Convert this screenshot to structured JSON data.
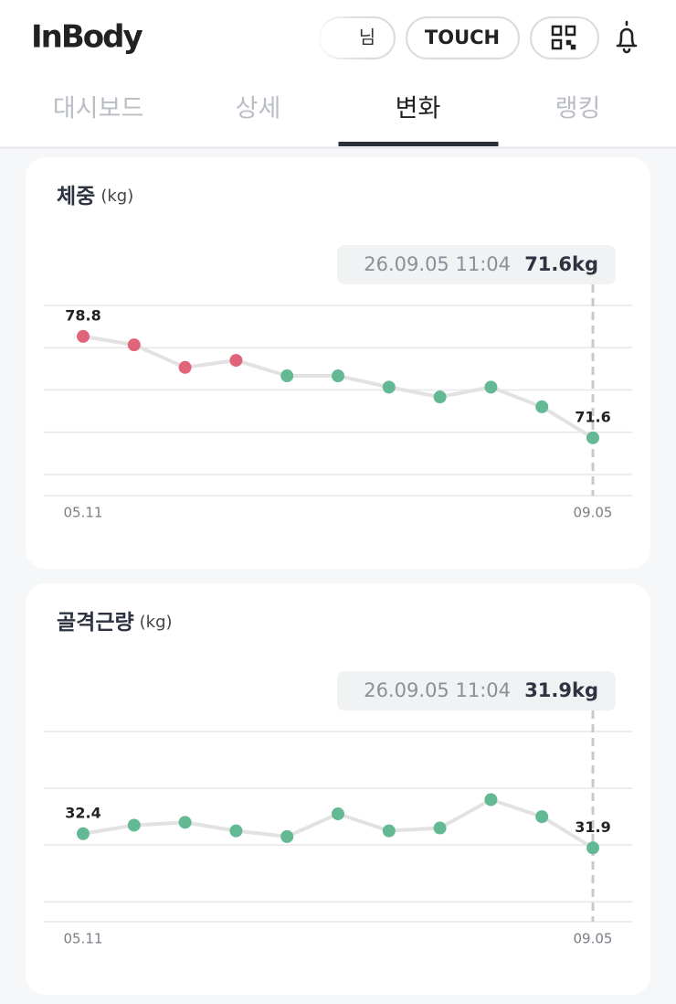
{
  "header": {
    "logo": "InBody",
    "user_button": "님",
    "touch_button": "TOUCH"
  },
  "tabs": [
    "대시보드",
    "상세",
    "변화",
    "랭킹"
  ],
  "active_tab": 2,
  "chart_data": [
    {
      "type": "line",
      "title": "체중",
      "unit_label": "(kg)",
      "tooltip_date": "26.09.05 11:04",
      "tooltip_value": "71.6kg",
      "categories": [
        "05.11",
        null,
        null,
        null,
        null,
        null,
        null,
        null,
        null,
        null,
        "09.05"
      ],
      "values": [
        78.8,
        78.2,
        76.6,
        77.1,
        76.0,
        76.0,
        75.2,
        74.5,
        75.2,
        73.8,
        71.6
      ],
      "colors": [
        "#e0657a",
        "#e0657a",
        "#e0657a",
        "#e0657a",
        "#62b994",
        "#62b994",
        "#62b994",
        "#62b994",
        "#62b994",
        "#62b994",
        "#62b994"
      ],
      "ylim": [
        67.5,
        81
      ],
      "yticks": [
        69,
        72,
        75,
        78,
        81
      ],
      "grid": true,
      "data_labels": "first-last"
    },
    {
      "type": "line",
      "title": "골격근량",
      "unit_label": "(kg)",
      "tooltip_date": "26.09.05 11:04",
      "tooltip_value": "31.9kg",
      "categories": [
        "05.11",
        null,
        null,
        null,
        null,
        null,
        null,
        null,
        null,
        null,
        "09.05"
      ],
      "values": [
        32.4,
        32.7,
        32.8,
        32.5,
        32.3,
        33.1,
        32.5,
        32.6,
        33.6,
        33.0,
        31.9
      ],
      "colors": [
        "#62b994",
        "#62b994",
        "#62b994",
        "#62b994",
        "#62b994",
        "#62b994",
        "#62b994",
        "#62b994",
        "#62b994",
        "#62b994",
        "#62b994"
      ],
      "ylim": [
        29.3,
        36
      ],
      "yticks": [
        30,
        32,
        34,
        36
      ],
      "grid": true,
      "data_labels": "first-last"
    }
  ]
}
